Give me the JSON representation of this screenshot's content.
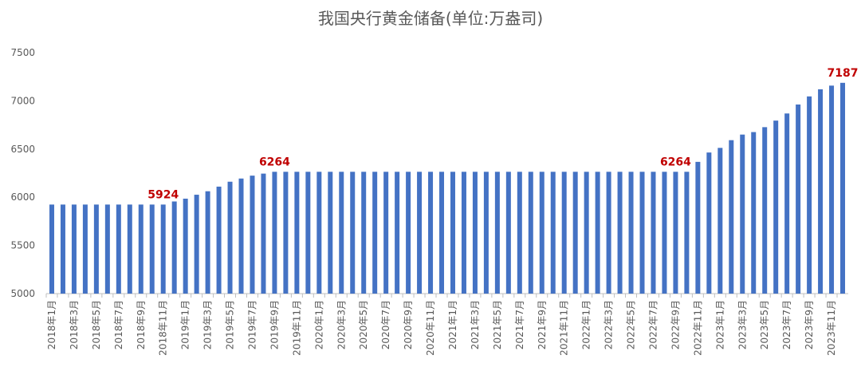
{
  "chart_data": {
    "type": "bar",
    "title": "我国央行黄金储备(单位:万盎司)",
    "categories": [
      "2018年1月",
      null,
      "2018年3月",
      null,
      "2018年5月",
      null,
      "2018年7月",
      null,
      "2018年9月",
      null,
      "2018年11月",
      null,
      "2019年1月",
      null,
      "2019年3月",
      null,
      "2019年5月",
      null,
      "2019年7月",
      null,
      "2019年9月",
      null,
      "2019年11月",
      null,
      "2020年1月",
      null,
      "2020年3月",
      null,
      "2020年5月",
      null,
      "2020年7月",
      null,
      "2020年9月",
      null,
      "2020年11月",
      null,
      "2021年1月",
      null,
      "2021年3月",
      null,
      "2021年5月",
      null,
      "2021年7月",
      null,
      "2021年9月",
      null,
      "2021年11月",
      null,
      "2022年1月",
      null,
      "2022年3月",
      null,
      "2022年5月",
      null,
      "2022年7月",
      null,
      "2022年9月",
      null,
      "2022年11月",
      null,
      "2023年1月",
      null,
      "2023年3月",
      null,
      "2023年5月",
      null,
      "2023年7月",
      null,
      "2023年9月",
      null,
      "2023年11月",
      null
    ],
    "values": [
      5924,
      5924,
      5924,
      5924,
      5924,
      5924,
      5924,
      5924,
      5924,
      5924,
      5924,
      5956,
      5985,
      6026,
      6062,
      6110,
      6161,
      6194,
      6224,
      6245,
      6264,
      6264,
      6264,
      6264,
      6264,
      6264,
      6264,
      6264,
      6264,
      6264,
      6264,
      6264,
      6264,
      6264,
      6264,
      6264,
      6264,
      6264,
      6264,
      6264,
      6264,
      6264,
      6264,
      6264,
      6264,
      6264,
      6264,
      6264,
      6264,
      6264,
      6264,
      6264,
      6264,
      6264,
      6264,
      6264,
      6264,
      6264,
      6367,
      6464,
      6512,
      6592,
      6650,
      6676,
      6727,
      6795,
      6869,
      6962,
      7046,
      7120,
      7158,
      7187
    ],
    "value_labels": [
      null,
      null,
      null,
      null,
      null,
      null,
      null,
      null,
      null,
      null,
      "5924",
      null,
      null,
      null,
      null,
      null,
      null,
      null,
      null,
      null,
      "6264",
      null,
      null,
      null,
      null,
      null,
      null,
      null,
      null,
      null,
      null,
      null,
      null,
      null,
      null,
      null,
      null,
      null,
      null,
      null,
      null,
      null,
      null,
      null,
      null,
      null,
      null,
      null,
      null,
      null,
      null,
      null,
      null,
      null,
      null,
      null,
      "6264",
      null,
      null,
      null,
      null,
      null,
      null,
      null,
      null,
      null,
      null,
      null,
      null,
      null,
      null,
      "7187"
    ],
    "color": "#4472c4",
    "label_color": "#c00000",
    "ylim": [
      5000,
      7500
    ],
    "yticks": [
      5000,
      5500,
      6000,
      6500,
      7000,
      7500
    ],
    "grid": false
  }
}
